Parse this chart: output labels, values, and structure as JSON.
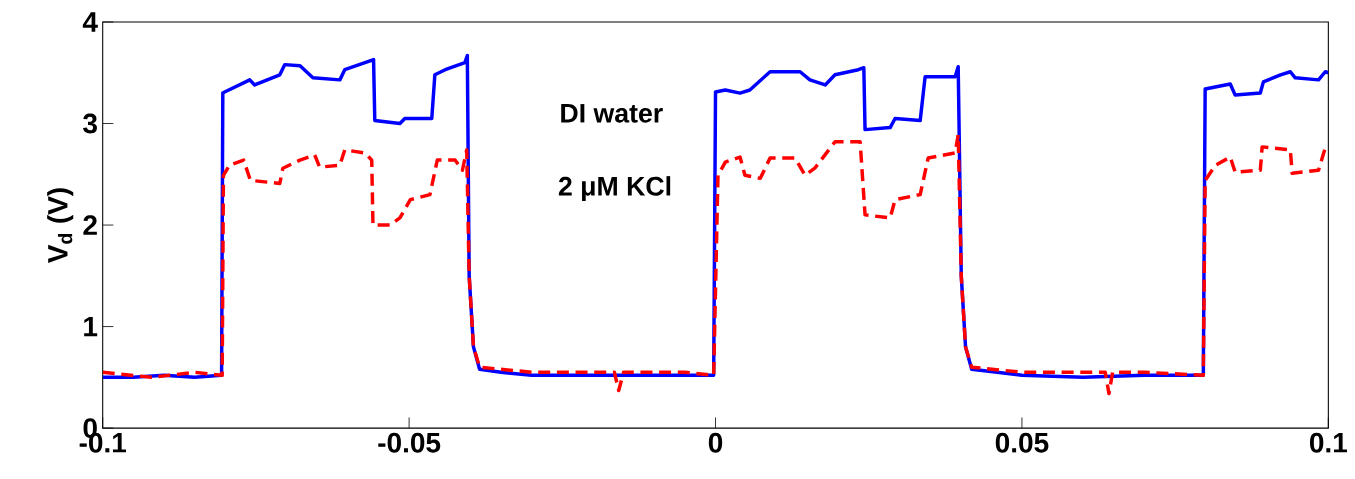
{
  "chart_data": {
    "type": "line",
    "ylabel": "V$_{d}$ (V)",
    "xlim": [
      -0.1,
      0.1
    ],
    "ylim": [
      0,
      4
    ],
    "xticks": [
      {
        "value": -0.1,
        "label": "-0.1"
      },
      {
        "value": -0.05,
        "label": "-0.05"
      },
      0,
      {
        "value": 0.05,
        "label": "0.05"
      },
      {
        "value": 0.1,
        "label": "0.1"
      }
    ],
    "yticks": [
      0,
      1,
      2,
      3,
      4
    ],
    "grid": false,
    "legend": false,
    "series": [
      {
        "name": "DI water",
        "color": "#0000ff",
        "line_style": "solid",
        "x": [
          -0.1,
          -0.095,
          -0.09,
          -0.085,
          -0.0806,
          -0.0804,
          -0.0801,
          -0.076,
          -0.0752,
          -0.0711,
          -0.0703,
          -0.0678,
          -0.0657,
          -0.0613,
          -0.0605,
          -0.0572,
          -0.0558,
          -0.0556,
          -0.0515,
          -0.0507,
          -0.0463,
          -0.0458,
          -0.0441,
          -0.0409,
          -0.0405,
          -0.0402,
          -0.0395,
          -0.0385,
          -0.035,
          -0.03,
          -0.02,
          -0.01,
          -0.0003,
          0,
          0.0016,
          0.004,
          0.0056,
          0.0089,
          0.0138,
          0.0154,
          0.0179,
          0.0195,
          0.0233,
          0.0242,
          0.0244,
          0.0285,
          0.0293,
          0.0334,
          0.0342,
          0.0391,
          0.0396,
          0.0401,
          0.0408,
          0.0418,
          0.05,
          0.06,
          0.07,
          0.0796,
          0.0799,
          0.084,
          0.0848,
          0.0889,
          0.0894,
          0.0922,
          0.0938,
          0.0946,
          0.0984,
          0.0995,
          0.1
        ],
        "values": [
          0.5,
          0.5,
          0.52,
          0.5,
          0.52,
          3.3,
          3.31,
          3.43,
          3.38,
          3.48,
          3.58,
          3.57,
          3.45,
          3.43,
          3.53,
          3.6,
          3.63,
          3.03,
          3.0,
          3.05,
          3.05,
          3.48,
          3.53,
          3.6,
          3.67,
          1.5,
          0.8,
          0.58,
          0.55,
          0.52,
          0.52,
          0.52,
          0.52,
          3.31,
          3.33,
          3.3,
          3.33,
          3.51,
          3.51,
          3.43,
          3.38,
          3.48,
          3.53,
          3.55,
          2.94,
          2.96,
          3.05,
          3.03,
          3.46,
          3.46,
          3.56,
          1.5,
          0.8,
          0.58,
          0.52,
          0.5,
          0.52,
          0.52,
          3.34,
          3.39,
          3.28,
          3.3,
          3.41,
          3.48,
          3.51,
          3.45,
          3.43,
          3.51,
          3.5
        ]
      },
      {
        "name": "2 μM KCl",
        "color": "#ff0000",
        "line_style": "dashed",
        "x": [
          -0.1,
          -0.092,
          -0.085,
          -0.0805,
          -0.0803,
          -0.0793,
          -0.077,
          -0.0759,
          -0.0711,
          -0.0706,
          -0.0678,
          -0.0654,
          -0.0646,
          -0.0613,
          -0.0605,
          -0.0572,
          -0.0561,
          -0.0559,
          -0.0531,
          -0.0515,
          -0.0498,
          -0.0466,
          -0.0454,
          -0.0425,
          -0.0413,
          -0.0406,
          -0.0402,
          -0.0395,
          -0.0385,
          -0.03,
          -0.02,
          -0.0165,
          -0.0158,
          -0.015,
          -0.005,
          -0.0003,
          0.0004,
          0.0016,
          0.004,
          0.0048,
          0.0073,
          0.0089,
          0.013,
          0.0146,
          0.0162,
          0.0195,
          0.0236,
          0.0244,
          0.0285,
          0.0293,
          0.0334,
          0.0347,
          0.0391,
          0.0396,
          0.0401,
          0.0408,
          0.0418,
          0.05,
          0.06,
          0.0636,
          0.0642,
          0.0648,
          0.07,
          0.0796,
          0.0799,
          0.0816,
          0.084,
          0.0848,
          0.0889,
          0.0892,
          0.0938,
          0.0941,
          0.0984,
          0.0995,
          0.1
        ],
        "values": [
          0.55,
          0.5,
          0.55,
          0.52,
          2.49,
          2.59,
          2.64,
          2.44,
          2.41,
          2.56,
          2.64,
          2.69,
          2.57,
          2.59,
          2.74,
          2.71,
          2.64,
          2.0,
          2.0,
          2.07,
          2.25,
          2.3,
          2.64,
          2.64,
          2.54,
          2.74,
          1.5,
          0.8,
          0.6,
          0.55,
          0.55,
          0.55,
          0.37,
          0.55,
          0.55,
          0.52,
          2.49,
          2.62,
          2.67,
          2.49,
          2.46,
          2.66,
          2.66,
          2.49,
          2.56,
          2.82,
          2.82,
          2.1,
          2.07,
          2.25,
          2.3,
          2.66,
          2.71,
          2.89,
          1.5,
          0.8,
          0.6,
          0.55,
          0.55,
          0.55,
          0.34,
          0.55,
          0.55,
          0.52,
          2.44,
          2.59,
          2.67,
          2.52,
          2.54,
          2.77,
          2.74,
          2.51,
          2.54,
          2.76,
          2.76
        ]
      }
    ]
  }
}
